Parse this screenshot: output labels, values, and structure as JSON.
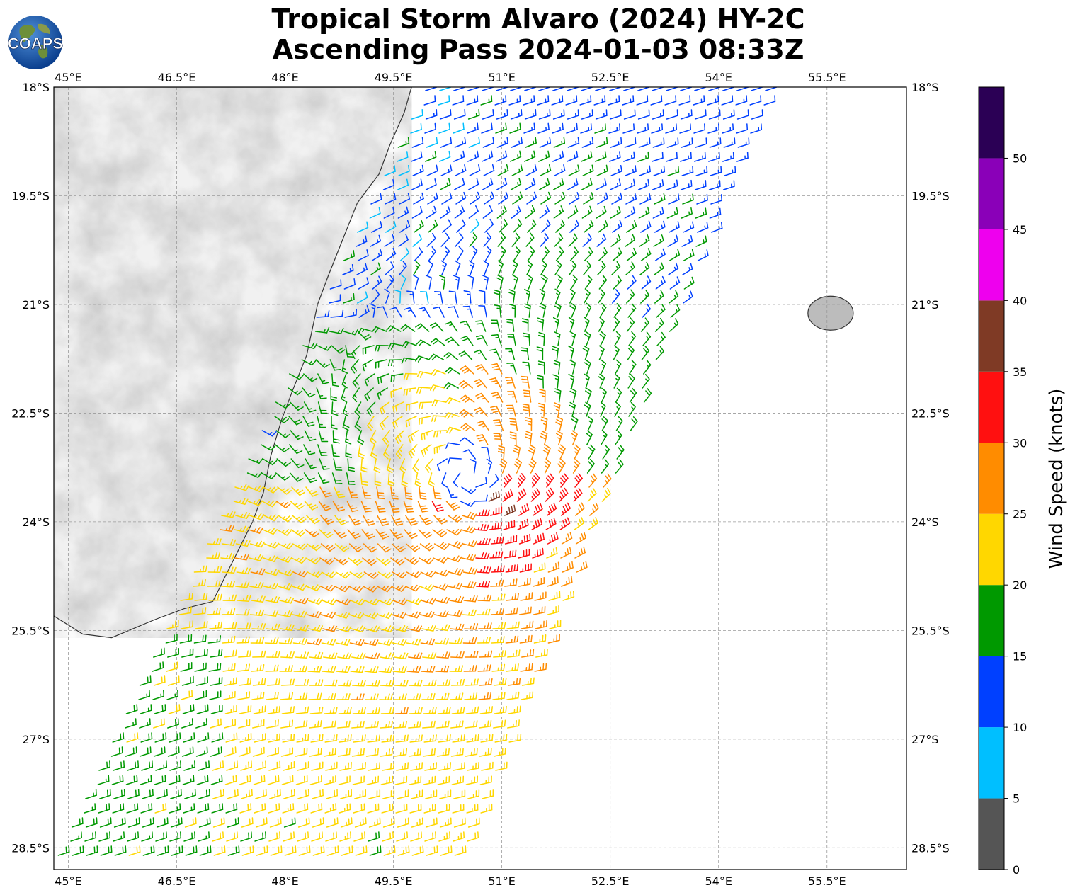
{
  "title": {
    "line1": "Tropical Storm Alvaro (2024) HY-2C",
    "line2": "Ascending Pass 2024-01-03 08:33Z"
  },
  "logo": {
    "text": "COAPS",
    "icon": "globe-logo-icon"
  },
  "map": {
    "lon_range": [
      44.8,
      56.6
    ],
    "lat_range": [
      -28.8,
      -18.0
    ],
    "lon_ticks": [
      "45°E",
      "46.5°E",
      "48°E",
      "49.5°E",
      "51°E",
      "52.5°E",
      "54°E",
      "55.5°E"
    ],
    "lat_ticks": [
      "18°S",
      "19.5°S",
      "21°S",
      "22.5°S",
      "24°S",
      "25.5°S",
      "27°S",
      "28.5°S"
    ],
    "gridlines": true,
    "storm_center": {
      "lon": 50.5,
      "lat": -23.35
    },
    "land": [
      "Madagascar",
      "Réunion"
    ]
  },
  "colorbar": {
    "label": "Wind Speed (knots)",
    "tick_labels": [
      "0",
      "5",
      "10",
      "15",
      "20",
      "25",
      "30",
      "35",
      "40",
      "45",
      "50"
    ],
    "colors": [
      "#555555",
      "#00bfff",
      "#0040ff",
      "#009900",
      "#ffd700",
      "#ff8c00",
      "#ff1010",
      "#7f3a25",
      "#ee00ee",
      "#8a00b8",
      "#2b0055"
    ],
    "range": [
      0,
      55
    ]
  }
}
